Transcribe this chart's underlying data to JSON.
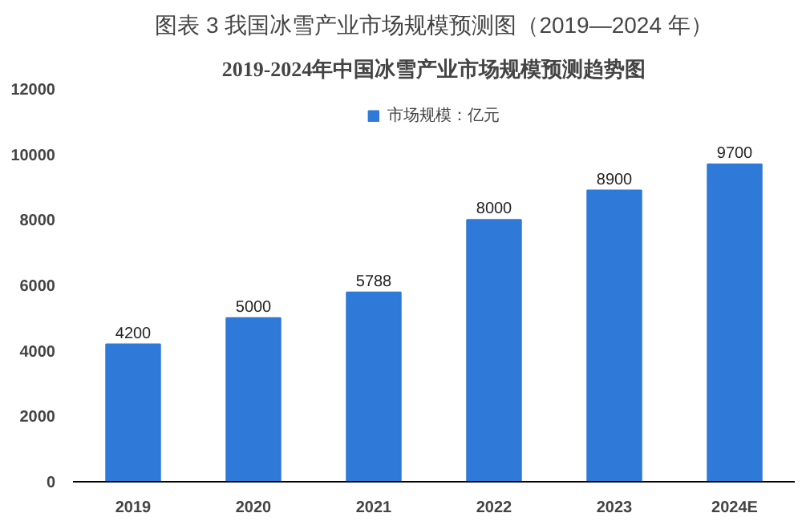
{
  "chart_data": {
    "type": "bar",
    "title": "图表 3 我国冰雪产业市场规模预测图（2019—2024 年）",
    "subtitle": "2019-2024年中国冰雪产业市场规模预测趋势图",
    "categories": [
      "2019",
      "2020",
      "2021",
      "2022",
      "2023",
      "2024E"
    ],
    "series": [
      {
        "name": "市场规模：亿元",
        "color": "#2f7ad8",
        "values": [
          4200,
          5000,
          5788,
          8000,
          8900,
          9700
        ]
      }
    ],
    "ylim": [
      0,
      12000
    ],
    "yticks": [
      0,
      2000,
      4000,
      6000,
      8000,
      10000,
      12000
    ],
    "grid": false,
    "legend": "top",
    "data_labels": true
  }
}
